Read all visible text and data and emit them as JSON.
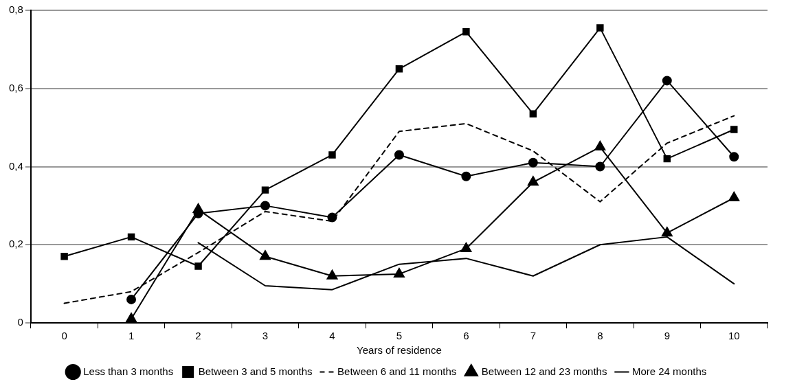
{
  "chart_data": {
    "type": "line",
    "xlabel": "Years of residence",
    "categories": [
      "0",
      "1",
      "2",
      "3",
      "4",
      "5",
      "6",
      "7",
      "8",
      "9",
      "10"
    ],
    "series": [
      {
        "name": "Less than 3 months",
        "color": "#000000",
        "marker": "circle",
        "line_style": "solid",
        "values": [
          null,
          0.06,
          0.28,
          0.3,
          0.27,
          0.43,
          0.375,
          0.41,
          0.4,
          0.62,
          0.425
        ]
      },
      {
        "name": "Between 3 and 5 months",
        "color": "#000000",
        "marker": "square",
        "line_style": "solid",
        "values": [
          0.17,
          0.22,
          0.145,
          0.34,
          0.43,
          0.65,
          0.745,
          0.535,
          0.755,
          0.42,
          0.495
        ]
      },
      {
        "name": "Between 6 and 11 months",
        "color": "#000000",
        "marker": "none",
        "line_style": "dashed",
        "values": [
          0.05,
          0.08,
          0.18,
          0.285,
          0.26,
          0.49,
          0.51,
          0.44,
          0.31,
          0.46,
          0.53
        ]
      },
      {
        "name": "Between 12 and 23 months",
        "color": "#000000",
        "marker": "triangle",
        "line_style": "solid",
        "values": [
          null,
          0.01,
          0.29,
          0.17,
          0.12,
          0.125,
          0.19,
          0.36,
          0.45,
          0.23,
          0.32
        ]
      },
      {
        "name": "More 24 months",
        "color": "#000000",
        "marker": "none",
        "line_style": "solid",
        "values": [
          null,
          null,
          0.205,
          0.095,
          0.085,
          0.15,
          0.165,
          0.12,
          0.2,
          0.22,
          0.1
        ]
      }
    ],
    "ylim": [
      0,
      0.8
    ],
    "yticks": [
      {
        "value": 0,
        "label": "0"
      },
      {
        "value": 0.2,
        "label": "0,2"
      },
      {
        "value": 0.4,
        "label": "0,4"
      },
      {
        "value": 0.6,
        "label": "0,6"
      },
      {
        "value": 0.8,
        "label": "0,8"
      }
    ],
    "grid": "y",
    "legend": "bottom"
  }
}
